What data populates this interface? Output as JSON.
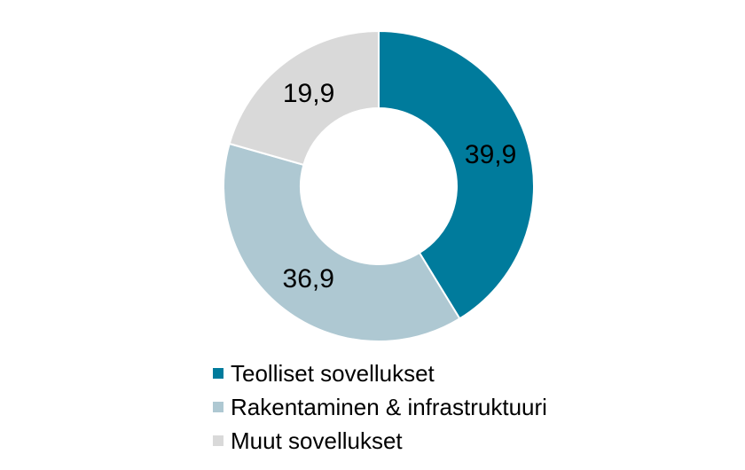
{
  "chart_data": {
    "type": "pie",
    "donut": true,
    "title": "",
    "categories": [
      "Teolliset sovellukset",
      "Rakentaminen & infrastruktuuri",
      "Muut sovellukset"
    ],
    "values": [
      39.9,
      36.9,
      19.9
    ],
    "value_labels": [
      "39,9",
      "36,9",
      "19,9"
    ],
    "colors": [
      "#007B9C",
      "#AEC8D2",
      "#D9D9D9"
    ],
    "legend_position": "bottom"
  }
}
